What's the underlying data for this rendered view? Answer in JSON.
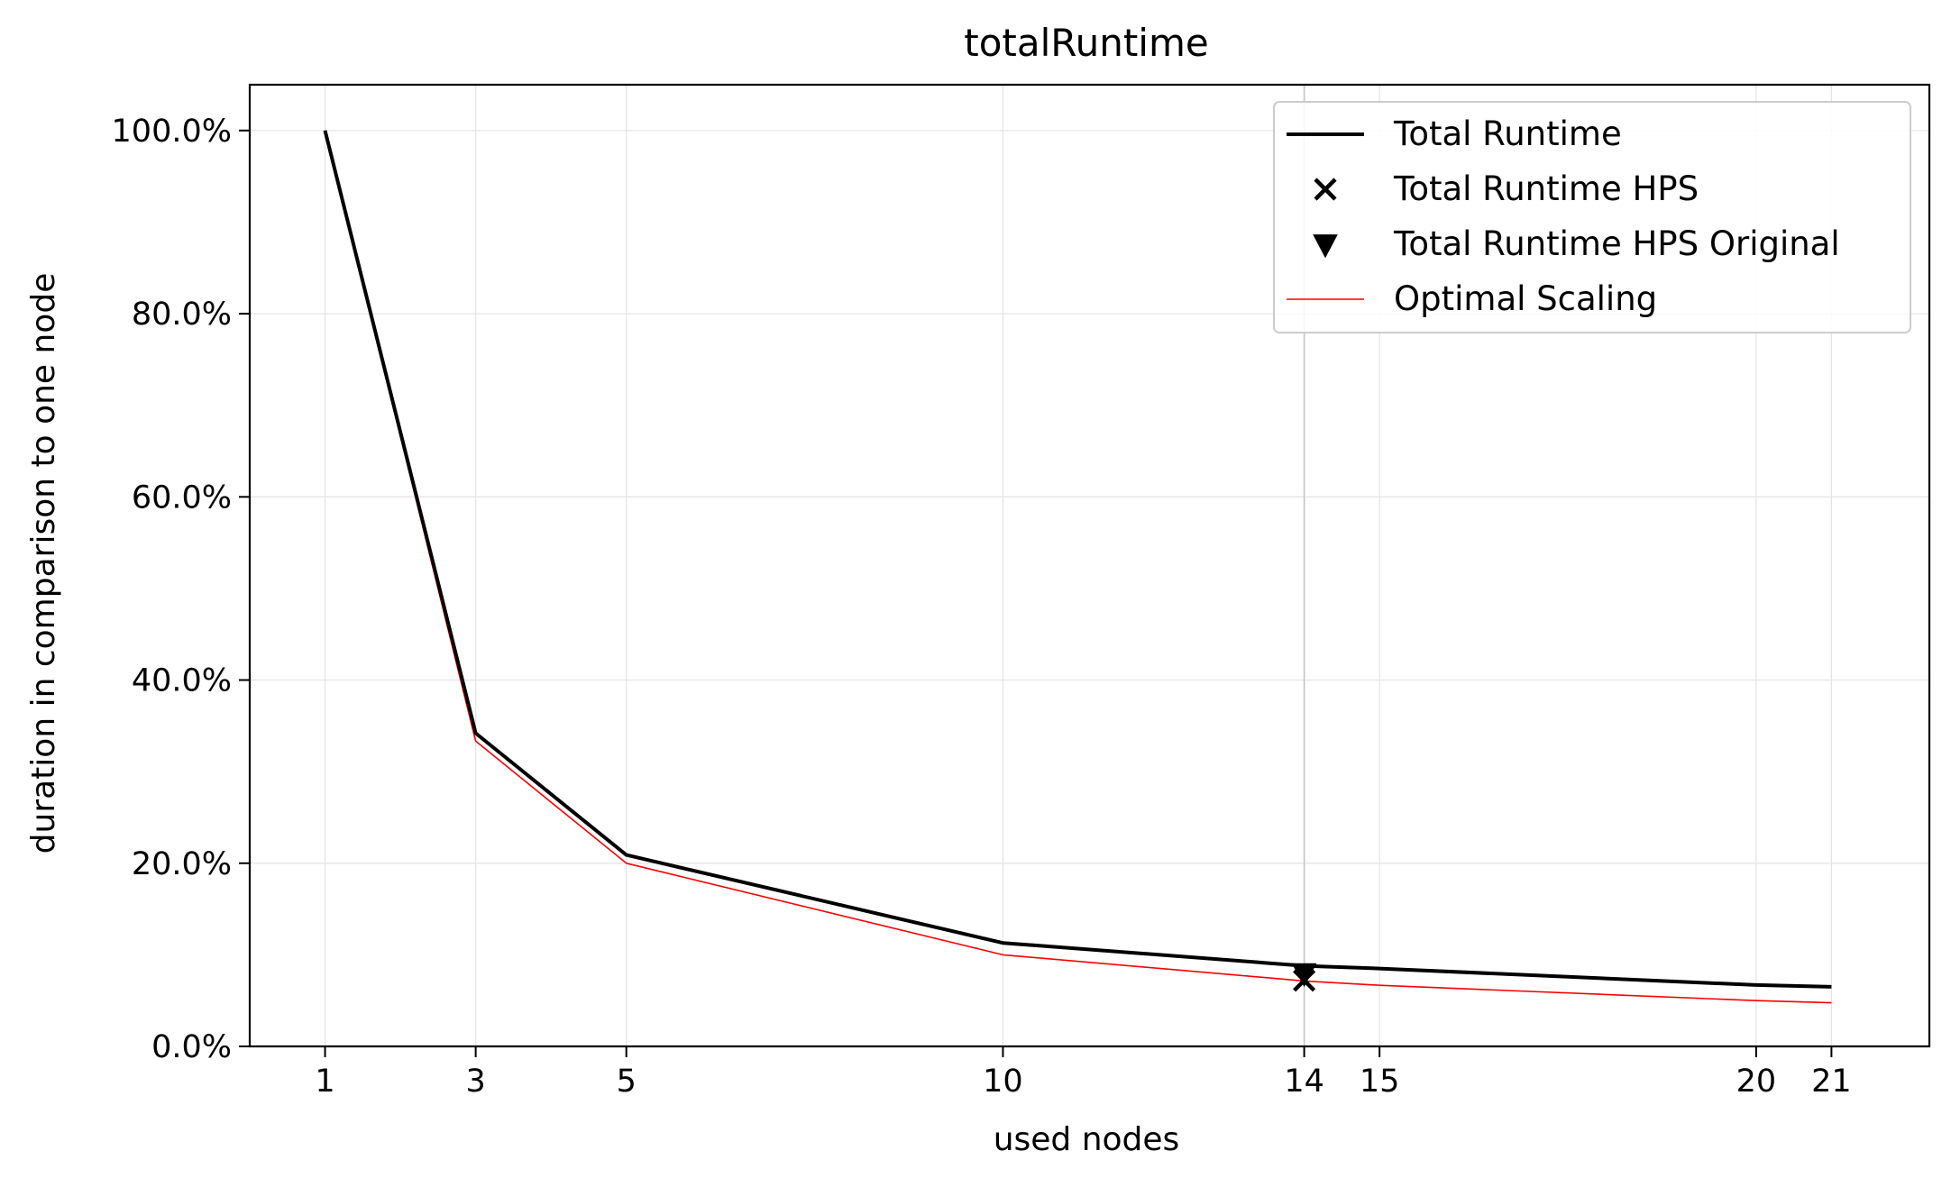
{
  "chart_data": {
    "type": "line",
    "title": "totalRuntime",
    "xlabel": "used nodes",
    "ylabel": "duration in comparison to one node",
    "xlim": [
      0,
      22.3
    ],
    "ylim": [
      0,
      1.05
    ],
    "grid": true,
    "legend_position": "top-right",
    "x_ticks": [
      1,
      3,
      5,
      10,
      14,
      15,
      20,
      21
    ],
    "x_tick_labels": [
      "1",
      "3",
      "5",
      "10",
      "14",
      "15",
      "20",
      "21"
    ],
    "y_ticks": [
      0,
      0.2,
      0.4,
      0.6,
      0.8,
      1.0
    ],
    "y_tick_labels": [
      "0.0%",
      "20.0%",
      "40.0%",
      "60.0%",
      "80.0%",
      "100.0%"
    ],
    "highlight_x": 14,
    "series": [
      {
        "name": "Total Runtime",
        "style": "line",
        "color": "#000000",
        "x": [
          1,
          3,
          5,
          10,
          14,
          15,
          20,
          21
        ],
        "values": [
          1.0,
          0.342,
          0.209,
          0.113,
          0.088,
          0.085,
          0.067,
          0.065
        ]
      },
      {
        "name": "Total Runtime HPS",
        "style": "marker-x",
        "color": "#000000",
        "x": [
          14
        ],
        "values": [
          0.072
        ]
      },
      {
        "name": "Total Runtime HPS Original",
        "style": "marker-triangle-down",
        "color": "#000000",
        "x": [
          14
        ],
        "values": [
          0.08
        ]
      },
      {
        "name": "Optimal Scaling",
        "style": "line",
        "color": "#ff0000",
        "x": [
          1,
          3,
          5,
          10,
          14,
          15,
          20,
          21
        ],
        "values": [
          1.0,
          0.3333,
          0.2,
          0.1,
          0.0714,
          0.0667,
          0.05,
          0.0476
        ]
      }
    ]
  }
}
